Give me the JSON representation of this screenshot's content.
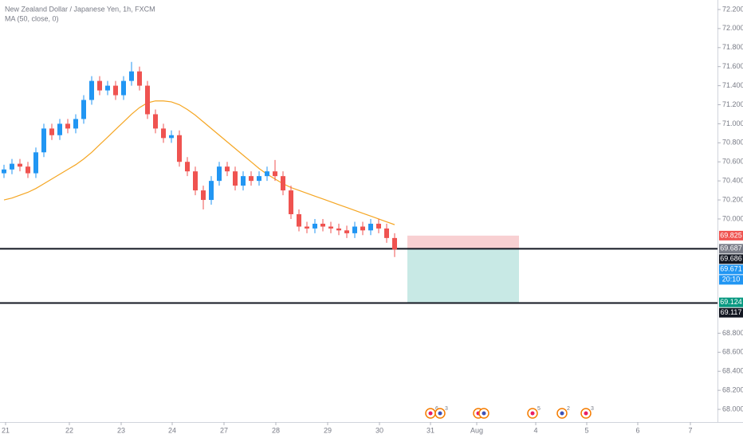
{
  "chart_data": {
    "type": "candlestick",
    "title": "New Zealand Dollar / Japanese Yen, 1h, FXCM",
    "subtitle": "MA (50, close, 0)",
    "up_color": "#2196f3",
    "down_color": "#ef5350",
    "ma_color": "#f5a623",
    "xlim": [
      -0.5,
      89.5
    ],
    "ylim": [
      67.9,
      72.3
    ],
    "grid": false,
    "xticks": [
      {
        "value": 0.2,
        "label": "21"
      },
      {
        "value": 8.2,
        "label": "22"
      },
      {
        "value": 14.7,
        "label": "23"
      },
      {
        "value": 21.1,
        "label": "24"
      },
      {
        "value": 27.6,
        "label": "27"
      },
      {
        "value": 34.1,
        "label": "28"
      },
      {
        "value": 40.6,
        "label": "29"
      },
      {
        "value": 47.1,
        "label": "30"
      },
      {
        "value": 53.5,
        "label": "31"
      },
      {
        "value": 59.3,
        "label": "Aug"
      },
      {
        "value": 66.7,
        "label": "4"
      },
      {
        "value": 73.1,
        "label": "5"
      },
      {
        "value": 79.5,
        "label": "6"
      },
      {
        "value": 86.1,
        "label": "7"
      }
    ],
    "yticks": [
      {
        "value": 72.2,
        "label": "72.200"
      },
      {
        "value": 72.0,
        "label": "72.000"
      },
      {
        "value": 71.8,
        "label": "71.800"
      },
      {
        "value": 71.6,
        "label": "71.600"
      },
      {
        "value": 71.4,
        "label": "71.400"
      },
      {
        "value": 71.2,
        "label": "71.200"
      },
      {
        "value": 71.0,
        "label": "71.000"
      },
      {
        "value": 70.8,
        "label": "70.800"
      },
      {
        "value": 70.6,
        "label": "70.600"
      },
      {
        "value": 70.4,
        "label": "70.400"
      },
      {
        "value": 70.2,
        "label": "70.200"
      },
      {
        "value": 70.0,
        "label": "70.000"
      },
      {
        "value": 68.8,
        "label": "68.800"
      },
      {
        "value": 68.6,
        "label": "68.600"
      },
      {
        "value": 68.4,
        "label": "68.400"
      },
      {
        "value": 68.2,
        "label": "68.200"
      },
      {
        "value": 68.0,
        "label": "68.000"
      }
    ],
    "open": [
      70.48,
      70.52,
      70.58,
      70.55,
      70.48,
      70.7,
      70.95,
      70.88,
      71.0,
      70.95,
      71.05,
      71.25,
      71.45,
      71.35,
      71.4,
      71.3,
      71.45,
      71.55,
      71.4,
      71.1,
      70.95,
      70.85,
      70.88,
      70.6,
      70.5,
      70.3,
      70.2,
      70.4,
      70.55,
      70.5,
      70.35,
      70.45,
      70.4,
      70.45,
      70.5,
      70.45,
      70.3,
      70.05,
      69.92,
      69.9,
      69.95,
      69.92,
      69.9,
      69.88,
      69.85,
      69.92,
      69.88,
      69.95,
      69.9,
      69.8
    ],
    "high": [
      70.57,
      70.63,
      70.63,
      70.6,
      70.75,
      71.0,
      71.0,
      71.05,
      71.05,
      71.1,
      71.3,
      71.5,
      71.5,
      71.45,
      71.45,
      71.5,
      71.65,
      71.6,
      71.45,
      71.15,
      71.0,
      70.93,
      70.93,
      70.65,
      70.55,
      70.35,
      70.45,
      70.6,
      70.6,
      70.55,
      70.5,
      70.5,
      70.5,
      70.55,
      70.62,
      70.5,
      70.35,
      70.1,
      69.97,
      70.0,
      70.0,
      69.97,
      69.95,
      69.93,
      69.97,
      69.97,
      70.0,
      70.0,
      69.95,
      69.85
    ],
    "low": [
      70.43,
      70.47,
      70.5,
      70.43,
      70.43,
      70.65,
      70.83,
      70.83,
      70.9,
      70.9,
      71.0,
      71.2,
      71.3,
      71.3,
      71.25,
      71.25,
      71.4,
      71.35,
      71.05,
      70.9,
      70.8,
      70.8,
      70.55,
      70.45,
      70.25,
      70.1,
      70.15,
      70.35,
      70.45,
      70.3,
      70.3,
      70.35,
      70.35,
      70.4,
      70.4,
      70.25,
      70.0,
      69.87,
      69.85,
      69.85,
      69.87,
      69.85,
      69.83,
      69.8,
      69.8,
      69.83,
      69.83,
      69.85,
      69.75,
      69.6
    ],
    "close": [
      70.52,
      70.58,
      70.55,
      70.48,
      70.7,
      70.95,
      70.88,
      71.0,
      70.95,
      71.05,
      71.25,
      71.45,
      71.35,
      71.4,
      71.3,
      71.45,
      71.55,
      71.4,
      71.1,
      70.95,
      70.85,
      70.88,
      70.6,
      70.5,
      70.3,
      70.2,
      70.4,
      70.55,
      70.5,
      70.35,
      70.45,
      70.4,
      70.45,
      70.5,
      70.45,
      70.3,
      70.05,
      69.92,
      69.9,
      69.95,
      69.92,
      69.9,
      69.88,
      69.85,
      69.92,
      69.88,
      69.95,
      69.9,
      69.8,
      69.68
    ],
    "ma": [
      70.2,
      70.22,
      70.25,
      70.28,
      70.32,
      70.37,
      70.42,
      70.47,
      70.52,
      70.57,
      70.63,
      70.7,
      70.78,
      70.86,
      70.94,
      71.02,
      71.1,
      71.17,
      71.22,
      71.24,
      71.24,
      71.23,
      71.2,
      71.15,
      71.09,
      71.02,
      70.95,
      70.88,
      70.81,
      70.74,
      70.67,
      70.6,
      70.53,
      70.47,
      70.42,
      70.37,
      70.33,
      70.3,
      70.27,
      70.24,
      70.21,
      70.18,
      70.15,
      70.12,
      70.09,
      70.06,
      70.03,
      70.0,
      69.97,
      69.94
    ],
    "position": {
      "start": 50.6,
      "end": 64.6,
      "stop": 69.825,
      "entry": 69.687,
      "target": 69.124,
      "stop_color": "#f8d0d2",
      "target_color": "#c8e9e5"
    },
    "hlines": [
      69.687,
      69.117
    ],
    "price_labels": [
      {
        "value": 69.825,
        "label": "69.825",
        "color": "#ef5350"
      },
      {
        "value": 69.687,
        "label": "69.687",
        "color": "#787b86"
      },
      {
        "value": 69.686,
        "label": "69.686",
        "color": "#131722"
      },
      {
        "value": 69.671,
        "label": "69.671",
        "color": "#2196f3",
        "countdown": "20:10"
      },
      {
        "value": 69.124,
        "label": "69.124",
        "color": "#089981"
      },
      {
        "value": 69.117,
        "label": "69.117",
        "color": "#131722"
      }
    ],
    "events": [
      {
        "x": 53.5,
        "count": 6
      },
      {
        "x": 54.7,
        "count": 3
      },
      {
        "x": 59.5
      },
      {
        "x": 60.2
      },
      {
        "x": 66.3,
        "count": 5
      },
      {
        "x": 70.0,
        "count": 2
      },
      {
        "x": 73.0,
        "count": 3
      }
    ]
  }
}
